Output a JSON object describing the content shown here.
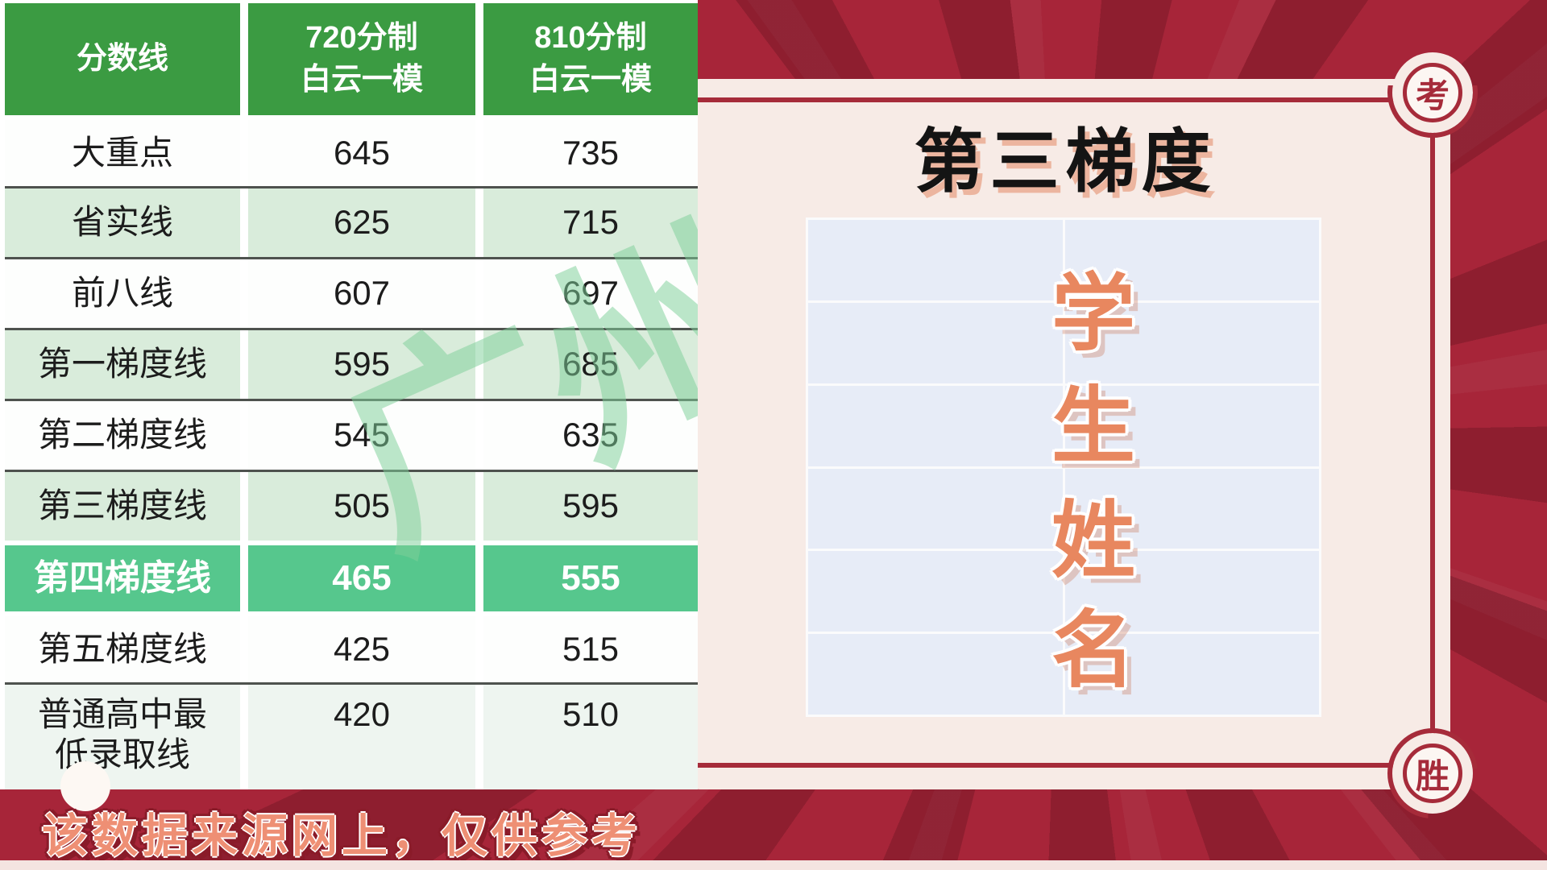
{
  "score_table": {
    "columns": [
      "分数线",
      "720分制\n白云一模",
      "810分制\n白云一模"
    ],
    "rows": [
      {
        "label": "大重点",
        "score_720": "645",
        "score_810": "735",
        "tint": false,
        "highlight": false
      },
      {
        "label": "省实线",
        "score_720": "625",
        "score_810": "715",
        "tint": true,
        "highlight": false
      },
      {
        "label": "前八线",
        "score_720": "607",
        "score_810": "697",
        "tint": false,
        "highlight": false
      },
      {
        "label": "第一梯度线",
        "score_720": "595",
        "score_810": "685",
        "tint": true,
        "highlight": false
      },
      {
        "label": "第二梯度线",
        "score_720": "545",
        "score_810": "635",
        "tint": false,
        "highlight": false
      },
      {
        "label": "第三梯度线",
        "score_720": "505",
        "score_810": "595",
        "tint": true,
        "highlight": false
      },
      {
        "label": "第四梯度线",
        "score_720": "465",
        "score_810": "555",
        "tint": false,
        "highlight": true
      },
      {
        "label": "第五梯度线",
        "score_720": "425",
        "score_810": "515",
        "tint": false,
        "highlight": false
      },
      {
        "label": "普通高中最\n低录取线",
        "score_720": "420",
        "score_810": "510",
        "tint": true,
        "highlight": false
      }
    ],
    "watermark": "广州"
  },
  "right_panel": {
    "title": "第三梯度",
    "vertical_label": "学生姓名",
    "badge_top": "考",
    "badge_bottom": "胜",
    "name_grid": {
      "rows": 6,
      "cols": 2
    }
  },
  "footer": {
    "note": "该数据来源网上，仅供参考"
  },
  "colors": {
    "background_red": "#a72539",
    "frame_red": "#a62b3a",
    "panel_cream": "#f7ebe6",
    "header_green": "#3b9b42",
    "highlight_green": "#56c78d",
    "tint_green": "#d9ecdb",
    "name_cell_blue": "#e7ecf7",
    "coral_text": "#e8875f",
    "footer_coral": "#ee8f74",
    "title_shadow": "#ecb59f",
    "watermark_green": "#7fcf9a"
  }
}
